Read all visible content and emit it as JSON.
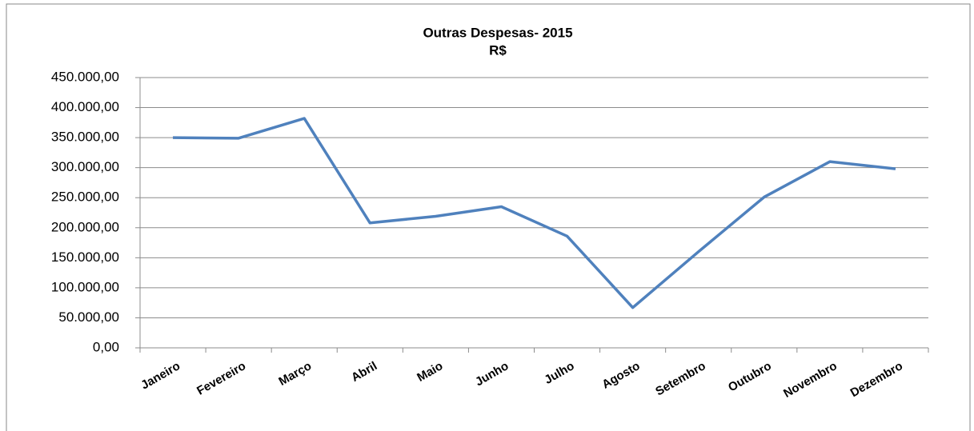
{
  "chart_data": {
    "type": "line",
    "title": "Outras Despesas- 2015",
    "subtitle": "R$",
    "categories": [
      "Janeiro",
      "Fevereiro",
      "Março",
      "Abril",
      "Maio",
      "Junho",
      "Julho",
      "Agosto",
      "Setembro",
      "Outubro",
      "Novembro",
      "Dezembro"
    ],
    "series": [
      {
        "color": "#4f81bd",
        "values": [
          350000,
          349000,
          382000,
          208000,
          219000,
          235000,
          186000,
          67000,
          160000,
          251000,
          310000,
          298000
        ]
      }
    ],
    "ylim": [
      0,
      450000
    ],
    "yticks": [
      {
        "value": 0,
        "label": "0,00"
      },
      {
        "value": 50000,
        "label": "50.000,00"
      },
      {
        "value": 100000,
        "label": "100.000,00"
      },
      {
        "value": 150000,
        "label": "150.000,00"
      },
      {
        "value": 200000,
        "label": "200.000,00"
      },
      {
        "value": 250000,
        "label": "250.000,00"
      },
      {
        "value": 300000,
        "label": "300.000,00"
      },
      {
        "value": 350000,
        "label": "350.000,00"
      },
      {
        "value": 400000,
        "label": "400.000,00"
      },
      {
        "value": 450000,
        "label": "450.000,00"
      }
    ],
    "grid": true
  }
}
